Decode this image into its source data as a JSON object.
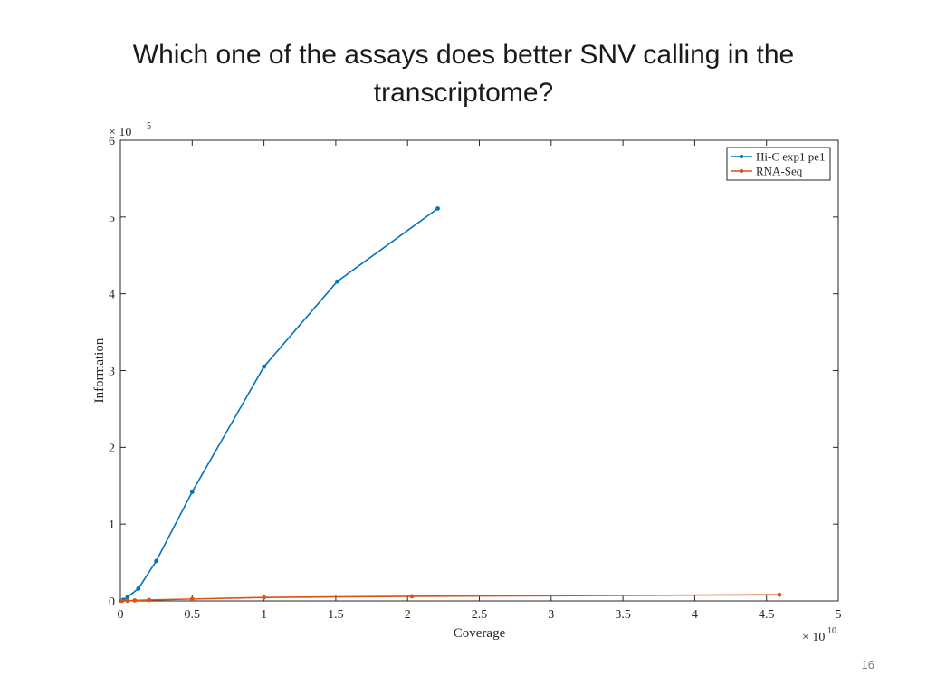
{
  "slide": {
    "title_line1": "Which one of the assays does better SNV calling in the",
    "title_line2": "transcriptome?",
    "page_number": "16"
  },
  "chart_data": {
    "type": "line",
    "xlabel": "Coverage",
    "ylabel": "Information",
    "xlim": [
      0,
      50000000000
    ],
    "ylim": [
      0,
      600000
    ],
    "x_ticks": [
      0,
      5000000000,
      10000000000,
      15000000000,
      20000000000,
      25000000000,
      30000000000,
      35000000000,
      40000000000,
      45000000000,
      50000000000
    ],
    "x_tick_labels": [
      "0",
      "0.5",
      "1",
      "1.5",
      "2",
      "2.5",
      "3",
      "3.5",
      "4",
      "4.5",
      "5"
    ],
    "y_ticks": [
      0,
      100000,
      200000,
      300000,
      400000,
      500000,
      600000
    ],
    "y_tick_labels": [
      "0",
      "1",
      "2",
      "3",
      "4",
      "5",
      "6"
    ],
    "x_multiplier": {
      "base": "× 10",
      "exponent": "10"
    },
    "y_multiplier": {
      "base": "× 10",
      "exponent": "5"
    },
    "legend_position": "top-right",
    "grid": false,
    "series": [
      {
        "name": "Hi-C exp1 pe1",
        "color": "#0072BD",
        "x": [
          50000000,
          200000000,
          500000000,
          1250000000,
          2500000000,
          5000000000,
          10000000000,
          15100000000,
          22100000000
        ],
        "y": [
          300,
          1500,
          5000,
          16000,
          52000,
          142000,
          305000,
          416000,
          511000
        ]
      },
      {
        "name": "RNA-Seq",
        "color": "#D95319",
        "x": [
          100000000,
          500000000,
          1000000000,
          2000000000,
          5000000000,
          10000000000,
          20300000000,
          45900000000
        ],
        "y": [
          100,
          300,
          700,
          1200,
          2500,
          4500,
          6000,
          8000
        ]
      }
    ]
  }
}
